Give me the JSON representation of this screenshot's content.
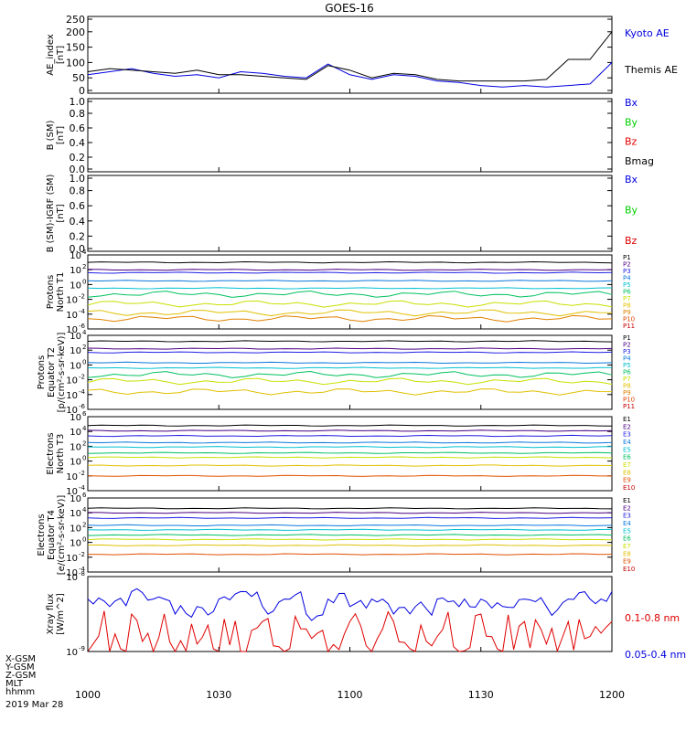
{
  "title": "GOES-16",
  "x_axis": {
    "ticks": [
      "1000",
      "1030",
      "1100",
      "1130",
      "1200"
    ],
    "row_labels": [
      "X-GSM",
      "Y-GSM",
      "Z-GSM",
      "MLT",
      "hhmm"
    ],
    "date": "2019 Mar 28"
  },
  "colors": {
    "blue": "#0000e0",
    "green": "#00d000",
    "red": "#e00000",
    "black": "#000000",
    "P1": "#000000",
    "P2": "#4b0082",
    "P3": "#1e1ee6",
    "P4": "#0a78dc",
    "P5": "#00c0d0",
    "P6": "#00c060",
    "P7": "#c8e000",
    "P8": "#e0c000",
    "P9": "#e08000",
    "P10": "#e04000",
    "P11": "#c80000",
    "E1": "#000000",
    "E2": "#4b0082",
    "E3": "#1e1ee6",
    "E4": "#0a78dc",
    "E5": "#00c0d0",
    "E6": "#00c060",
    "E7": "#c8e000",
    "E8": "#e0c000",
    "E9": "#e05000",
    "E10": "#c80000"
  },
  "chart_data": [
    {
      "type": "line",
      "ylabel": "AE_index [nT]",
      "ylim": [
        0,
        250
      ],
      "ticks": [
        "250",
        "200",
        "150",
        "100",
        "50",
        "0"
      ],
      "x": [
        0,
        5,
        10,
        15,
        20,
        25,
        30,
        35,
        40,
        45,
        50,
        55,
        60,
        65,
        70,
        75,
        80,
        85,
        90,
        95,
        100,
        105,
        110,
        115,
        120
      ],
      "series": [
        {
          "name": "Kyoto AE",
          "color": "blue",
          "values": [
            60,
            70,
            80,
            65,
            55,
            60,
            50,
            70,
            65,
            55,
            50,
            95,
            60,
            45,
            60,
            55,
            40,
            35,
            25,
            20,
            25,
            20,
            25,
            30,
            100
          ]
        },
        {
          "name": "Themis AE",
          "color": "black",
          "values": [
            70,
            80,
            75,
            70,
            65,
            75,
            60,
            60,
            55,
            50,
            45,
            90,
            75,
            50,
            65,
            60,
            45,
            40,
            40,
            40,
            40,
            45,
            110,
            110,
            200
          ]
        }
      ]
    },
    {
      "type": "line",
      "ylabel": "B (SM) [nT]",
      "ylim": [
        0,
        1
      ],
      "ticks": [
        "1.0",
        "0.8",
        "0.6",
        "0.4",
        "0.2",
        "0.0"
      ],
      "series": [
        {
          "name": "Bx",
          "color": "blue",
          "values": []
        },
        {
          "name": "By",
          "color": "green",
          "values": []
        },
        {
          "name": "Bz",
          "color": "red",
          "values": []
        },
        {
          "name": "Bmag",
          "color": "black",
          "values": []
        }
      ]
    },
    {
      "type": "line",
      "ylabel": "B (SM)-IGRF (SM) [nT]",
      "ylim": [
        0,
        1
      ],
      "ticks": [
        "1.0",
        "0.8",
        "0.6",
        "0.4",
        "0.2",
        "0.0"
      ],
      "series": [
        {
          "name": "Bx",
          "color": "blue",
          "values": []
        },
        {
          "name": "By",
          "color": "green",
          "values": []
        },
        {
          "name": "Bz",
          "color": "red",
          "values": []
        }
      ]
    },
    {
      "type": "line",
      "log": true,
      "ylabel": "Protons North T1",
      "ylim_log10": [
        -6,
        4
      ],
      "ticks": [
        {
          "b": "10",
          "e": "4",
          "p": 4
        },
        {
          "b": "10",
          "e": "2",
          "p": 2
        },
        {
          "b": "10",
          "e": "0",
          "p": 0
        },
        {
          "b": "10",
          "e": "-2",
          "p": -2
        },
        {
          "b": "10",
          "e": "-4",
          "p": -4
        },
        {
          "b": "10",
          "e": "-6",
          "p": -6
        }
      ],
      "series": [
        {
          "name": "P1",
          "log10": 3.0
        },
        {
          "name": "P2",
          "log10": 2.0
        },
        {
          "name": "P3",
          "log10": 1.6
        },
        {
          "name": "P4",
          "log10": 0.5
        },
        {
          "name": "P5",
          "log10": -0.5
        },
        {
          "name": "P6",
          "log10": -1.3
        },
        {
          "name": "P7",
          "log10": -2.6
        },
        {
          "name": "P8",
          "log10": -3.8
        },
        {
          "name": "P9",
          "log10": -4.6
        },
        {
          "name": "P10",
          "log10": null
        },
        {
          "name": "P11",
          "log10": null
        }
      ]
    },
    {
      "type": "line",
      "log": true,
      "ylabel": "Protons Equator T2 [p/(cm²-s-sr-keV)]",
      "ylim_log10": [
        -6,
        4
      ],
      "ticks": [
        {
          "b": "10",
          "e": "4",
          "p": 4
        },
        {
          "b": "10",
          "e": "2",
          "p": 2
        },
        {
          "b": "10",
          "e": "0",
          "p": 0
        },
        {
          "b": "10",
          "e": "-2",
          "p": -2
        },
        {
          "b": "10",
          "e": "-4",
          "p": -4
        },
        {
          "b": "10",
          "e": "-6",
          "p": -6
        }
      ],
      "series": [
        {
          "name": "P1",
          "log10": 3.2
        },
        {
          "name": "P2",
          "log10": 2.2
        },
        {
          "name": "P3",
          "log10": 1.7
        },
        {
          "name": "P4",
          "log10": 0.3
        },
        {
          "name": "P5",
          "log10": -0.4
        },
        {
          "name": "P6",
          "log10": -1.3
        },
        {
          "name": "P7",
          "log10": -2.2
        },
        {
          "name": "P8",
          "log10": -3.6
        },
        {
          "name": "P9",
          "log10": null
        },
        {
          "name": "P10",
          "log10": null
        },
        {
          "name": "P11",
          "log10": null
        }
      ]
    },
    {
      "type": "line",
      "log": true,
      "ylabel": "Electrons North T3",
      "ylim_log10": [
        -4,
        6
      ],
      "ticks": [
        {
          "b": "10",
          "e": "6",
          "p": 6
        },
        {
          "b": "10",
          "e": "4",
          "p": 4
        },
        {
          "b": "10",
          "e": "2",
          "p": 2
        },
        {
          "b": "10",
          "e": "0",
          "p": 0
        },
        {
          "b": "10",
          "e": "-2",
          "p": -2
        },
        {
          "b": "10",
          "e": "-4",
          "p": -4
        }
      ],
      "series": [
        {
          "name": "E1",
          "log10": 4.8
        },
        {
          "name": "E2",
          "log10": 4.1
        },
        {
          "name": "E3",
          "log10": 3.4
        },
        {
          "name": "E4",
          "log10": 2.5
        },
        {
          "name": "E5",
          "log10": 1.9
        },
        {
          "name": "E6",
          "log10": 1.1
        },
        {
          "name": "E7",
          "log10": 0.5
        },
        {
          "name": "E8",
          "log10": -0.6
        },
        {
          "name": "E9",
          "log10": -2.0
        },
        {
          "name": "E10",
          "log10": null
        }
      ]
    },
    {
      "type": "line",
      "log": true,
      "ylabel": "Electrons Equator T4 [e/(cm²-s-sr-keV)]",
      "ylim_log10": [
        -4,
        6
      ],
      "ticks": [
        {
          "b": "10",
          "e": "6",
          "p": 6
        },
        {
          "b": "10",
          "e": "4",
          "p": 4
        },
        {
          "b": "10",
          "e": "2",
          "p": 2
        },
        {
          "b": "10",
          "e": "0",
          "p": 0
        },
        {
          "b": "10",
          "e": "-2",
          "p": -2
        },
        {
          "b": "10",
          "e": "-4",
          "p": -4
        }
      ],
      "series": [
        {
          "name": "E1",
          "log10": 4.6
        },
        {
          "name": "E2",
          "log10": 4.0
        },
        {
          "name": "E3",
          "log10": 3.3
        },
        {
          "name": "E4",
          "log10": 2.3
        },
        {
          "name": "E5",
          "log10": 1.7
        },
        {
          "name": "E6",
          "log10": 1.0
        },
        {
          "name": "E7",
          "log10": 0.4
        },
        {
          "name": "E8",
          "log10": -0.4
        },
        {
          "name": "E9",
          "log10": -1.6
        },
        {
          "name": "E10",
          "log10": null
        }
      ]
    },
    {
      "type": "line",
      "log": true,
      "ylabel": "Xray flux [W/m^2]",
      "ylim_log10": [
        -9,
        -8
      ],
      "ticks": [
        {
          "b": "10",
          "e": "-8",
          "p": -8
        },
        {
          "b": "10",
          "e": "-9",
          "p": -9
        }
      ],
      "series": [
        {
          "name": "0.1-0.8 nm",
          "color": "red",
          "log10": [
            -9.0,
            -9.0,
            -8.5,
            -9.0,
            -9.0,
            -8.9,
            -9.0,
            -9.0,
            -8.6,
            -9.0,
            -8.7,
            -9.0,
            -8.6,
            -9.0,
            -8.6,
            -9.0,
            -8.8,
            -9.0,
            -8.5,
            -9.0,
            -8.6,
            -8.9,
            -8.6,
            -8.8,
            -8.6
          ]
        },
        {
          "name": "0.05-0.4 nm",
          "color": "blue",
          "log10": [
            -8.3,
            -8.4,
            -8.2,
            -8.3,
            -8.5,
            -8.4,
            -8.3,
            -8.2,
            -8.4,
            -8.3,
            -8.5,
            -8.3,
            -8.4,
            -8.3,
            -8.5,
            -8.4,
            -8.3,
            -8.4,
            -8.3,
            -8.4,
            -8.3,
            -8.4,
            -8.3,
            -8.3,
            -8.2
          ]
        }
      ]
    }
  ]
}
